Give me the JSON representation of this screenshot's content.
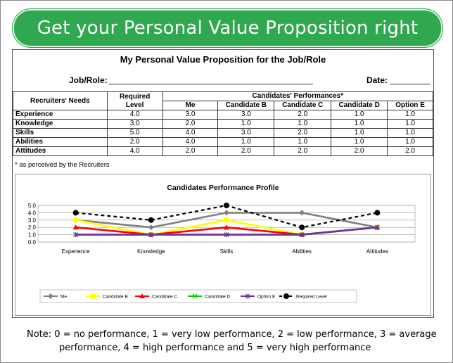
{
  "banner": {
    "title": "Get your Personal Value Proposition right"
  },
  "document": {
    "title": "My Personal Value Proposition for the Job/Role",
    "job_label": "Job/Role:",
    "date_label": "Date:",
    "headers": {
      "needs": "Recruiters' Needs",
      "required": "Required Level",
      "performances": "Candidates' Performances*",
      "candidates": [
        "Me",
        "Candidate B",
        "Candidate C",
        "Candidate D",
        "Option E"
      ]
    },
    "rows": [
      {
        "need": "Experience",
        "required": "4.0",
        "values": [
          "3.0",
          "3.0",
          "2.0",
          "1.0",
          "1.0"
        ]
      },
      {
        "need": "Knowledge",
        "required": "3.0",
        "values": [
          "2.0",
          "1.0",
          "1.0",
          "1.0",
          "1.0"
        ]
      },
      {
        "need": "Skills",
        "required": "5.0",
        "values": [
          "4.0",
          "3.0",
          "2.0",
          "1.0",
          "1.0"
        ]
      },
      {
        "need": "Abilities",
        "required": "2.0",
        "values": [
          "4.0",
          "1.0",
          "1.0",
          "1.0",
          "1.0"
        ]
      },
      {
        "need": "Attitudes",
        "required": "4.0",
        "values": [
          "2.0",
          "2.0",
          "2.0",
          "2.0",
          "2.0"
        ]
      }
    ],
    "footnote": "* as perceived by the Recruiters"
  },
  "chart_data": {
    "type": "line",
    "title": "Candidates Performance Profile",
    "categories": [
      "Experience",
      "Knowledge",
      "Skills",
      "Abilities",
      "Attitudes"
    ],
    "ylim": [
      0,
      5
    ],
    "yticks": [
      "0.0",
      "1.0",
      "2.0",
      "3.0",
      "4.0",
      "5.0"
    ],
    "grid": true,
    "legend_position": "bottom",
    "series": [
      {
        "name": "Me",
        "values": [
          3,
          2,
          4,
          4,
          2
        ],
        "color": "#808080",
        "marker": "diamond",
        "dashed": false
      },
      {
        "name": "Candidate B",
        "values": [
          3,
          1,
          3,
          1,
          2
        ],
        "color": "#ffff00",
        "marker": "square",
        "dashed": false
      },
      {
        "name": "Candidate C",
        "values": [
          2,
          1,
          2,
          1,
          2
        ],
        "color": "#ff0000",
        "marker": "triangle",
        "dashed": false
      },
      {
        "name": "Candidate D",
        "values": [
          1,
          1,
          1,
          1,
          2
        ],
        "color": "#00cc00",
        "marker": "x",
        "dashed": false
      },
      {
        "name": "Option E",
        "values": [
          1,
          1,
          1,
          1,
          2
        ],
        "color": "#7030a0",
        "marker": "star",
        "dashed": false
      },
      {
        "name": "Required Level",
        "values": [
          4,
          3,
          5,
          2,
          4
        ],
        "color": "#000000",
        "marker": "circle",
        "dashed": true
      }
    ]
  },
  "note": {
    "line1": "Note:  0 = no performance, 1 = very low performance, 2 = low performance, 3 = average",
    "line2": "performance, 4 = high performance and 5 = very high performance"
  }
}
